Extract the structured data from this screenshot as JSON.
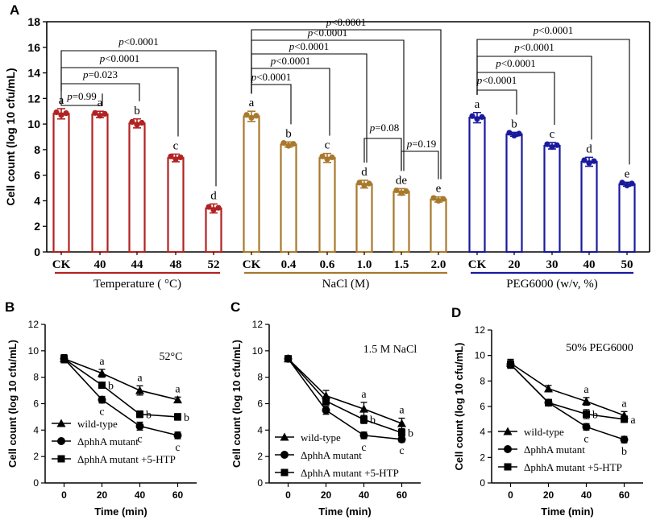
{
  "colors": {
    "temperature": "#b22222",
    "nacl": "#a8792c",
    "peg": "#1a1a9c",
    "axis": "#000000"
  },
  "chart_data": [
    {
      "panel": "A",
      "type": "bar",
      "ylabel": "Cell count (log 10 cfu/mL)",
      "ylim": [
        0,
        18
      ],
      "yticks": [
        0,
        2,
        4,
        6,
        8,
        10,
        12,
        14,
        16,
        18
      ],
      "groups": [
        {
          "name": "Temperature ( °C)",
          "color_key": "temperature",
          "categories": [
            "CK",
            "40",
            "44",
            "48",
            "52"
          ],
          "values": [
            10.8,
            10.75,
            10.05,
            7.35,
            3.4
          ],
          "errors": [
            0.4,
            0.25,
            0.35,
            0.3,
            0.35
          ],
          "letters": [
            "a",
            "a",
            "b",
            "c",
            "d"
          ],
          "comparisons": [
            {
              "label": "p=0.99",
              "to": 1
            },
            {
              "label": "p=0.023",
              "to": 2
            },
            {
              "label": "p<0.0001",
              "to": 3
            },
            {
              "label": "p<0.0001",
              "to": 4
            }
          ]
        },
        {
          "name": "NaCl (M)",
          "color_key": "nacl",
          "categories": [
            "CK",
            "0.4",
            "0.6",
            "1.0",
            "1.5",
            "2.0"
          ],
          "values": [
            10.6,
            8.4,
            7.35,
            5.3,
            4.7,
            4.1
          ],
          "errors": [
            0.4,
            0.2,
            0.35,
            0.3,
            0.25,
            0.2
          ],
          "letters": [
            "a",
            "b",
            "c",
            "d",
            "de",
            "e"
          ],
          "comparisons": [
            {
              "label": "p<0.0001",
              "to": 1
            },
            {
              "label": "p<0.0001",
              "to": 2
            },
            {
              "label": "p<0.0001",
              "to": 3
            },
            {
              "label": "p<0.0001",
              "to": 4
            },
            {
              "label": "p<0.0001",
              "to": 5
            }
          ],
          "extra_comparisons": [
            {
              "label": "p=0.08",
              "from": 3,
              "to": 4
            },
            {
              "label": "p=0.19",
              "from": 4,
              "to": 5
            }
          ]
        },
        {
          "name": "PEG6000 (w/v, %)",
          "color_key": "peg",
          "categories": [
            "CK",
            "20",
            "30",
            "40",
            "50"
          ],
          "values": [
            10.5,
            9.2,
            8.3,
            7.05,
            5.3
          ],
          "errors": [
            0.4,
            0.15,
            0.25,
            0.35,
            0.15
          ],
          "letters": [
            "a",
            "b",
            "c",
            "d",
            "e"
          ],
          "comparisons": [
            {
              "label": "p<0.0001",
              "to": 1
            },
            {
              "label": "p<0.0001",
              "to": 2
            },
            {
              "label": "p<0.0001",
              "to": 3
            },
            {
              "label": "p<0.0001",
              "to": 4
            }
          ]
        }
      ]
    },
    {
      "panel": "B",
      "type": "line",
      "annotation": "52°C",
      "xlabel": "Time (min)",
      "ylabel": "Cell count (log 10 cfu/mL)",
      "x": [
        0,
        20,
        40,
        60
      ],
      "xlim": [
        -10,
        70
      ],
      "ylim": [
        0,
        12
      ],
      "yticks": [
        0,
        2,
        4,
        6,
        8,
        10,
        12
      ],
      "series": [
        {
          "name": "wild-type",
          "marker": "triangle",
          "values": [
            9.4,
            8.3,
            7.0,
            6.3
          ],
          "errors": [
            0.3,
            0.3,
            0.35,
            0.2
          ],
          "letters": [
            "",
            "a",
            "a",
            "a"
          ]
        },
        {
          "name": "ΔphhA mutant +5-HTP",
          "marker": "square",
          "values": [
            9.4,
            7.4,
            5.2,
            5.0
          ],
          "errors": [
            0.3,
            0.2,
            0.25,
            0.25
          ],
          "letters": [
            "",
            "b",
            "b",
            "b"
          ]
        },
        {
          "name": "ΔphhA mutant",
          "marker": "circle",
          "values": [
            9.4,
            6.3,
            4.3,
            3.6
          ],
          "errors": [
            0.3,
            0.25,
            0.3,
            0.25
          ],
          "letters": [
            "",
            "c",
            "c",
            "c"
          ]
        }
      ]
    },
    {
      "panel": "C",
      "type": "line",
      "annotation": "1.5 M NaCl",
      "xlabel": "Time (min)",
      "ylabel": "Cell count (log 10 cfu/mL)",
      "x": [
        0,
        20,
        40,
        60
      ],
      "xlim": [
        -10,
        70
      ],
      "ylim": [
        0,
        12
      ],
      "yticks": [
        0,
        2,
        4,
        6,
        8,
        10,
        12
      ],
      "series": [
        {
          "name": "wild-type",
          "marker": "triangle",
          "values": [
            9.4,
            6.6,
            5.6,
            4.5
          ],
          "errors": [
            0.2,
            0.4,
            0.5,
            0.4
          ],
          "letters": [
            "",
            "",
            "a",
            "a"
          ]
        },
        {
          "name": "ΔphhA mutant +5-HTP",
          "marker": "square",
          "values": [
            9.4,
            6.2,
            4.8,
            3.8
          ],
          "errors": [
            0.2,
            0.3,
            0.3,
            0.3
          ],
          "letters": [
            "",
            "",
            "b",
            "b"
          ]
        },
        {
          "name": "ΔphhA mutant",
          "marker": "circle",
          "values": [
            9.4,
            5.5,
            3.6,
            3.3
          ],
          "errors": [
            0.2,
            0.3,
            0.25,
            0.2
          ],
          "letters": [
            "",
            "",
            "c",
            "c"
          ]
        }
      ]
    },
    {
      "panel": "D",
      "type": "line",
      "annotation": "50% PEG6000",
      "xlabel": "Time (min)",
      "ylabel": "Cell count (log 10 cfu/mL)",
      "x": [
        0,
        20,
        40,
        60
      ],
      "xlim": [
        -10,
        70
      ],
      "ylim": [
        0,
        12
      ],
      "yticks": [
        0,
        2,
        4,
        6,
        8,
        10,
        12
      ],
      "series": [
        {
          "name": "wild-type",
          "marker": "triangle",
          "values": [
            9.4,
            7.4,
            6.4,
            5.3
          ],
          "errors": [
            0.3,
            0.25,
            0.3,
            0.3
          ],
          "letters": [
            "",
            "",
            "a",
            "a"
          ]
        },
        {
          "name": "ΔphhA mutant +5-HTP",
          "marker": "square",
          "values": [
            9.3,
            6.3,
            5.4,
            5.0
          ],
          "errors": [
            0.3,
            0.25,
            0.35,
            0.25
          ],
          "letters": [
            "",
            "",
            "b",
            "a"
          ]
        },
        {
          "name": "ΔphhA mutant",
          "marker": "circle",
          "values": [
            9.3,
            6.3,
            4.4,
            3.4
          ],
          "errors": [
            0.3,
            0.25,
            0.25,
            0.25
          ],
          "letters": [
            "",
            "",
            "c",
            "b"
          ]
        }
      ]
    }
  ]
}
